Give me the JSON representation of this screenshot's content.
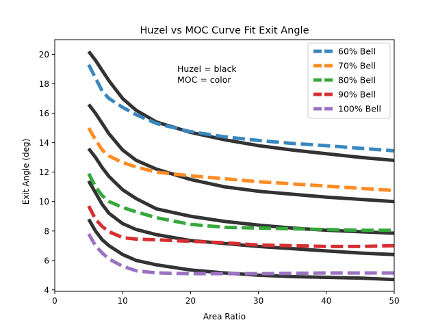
{
  "chart_data": {
    "type": "line",
    "title": "Huzel vs MOC Curve Fit Exit Angle",
    "xlabel": "Area Ratio",
    "ylabel": "Exit Angle (deg)",
    "xlim": [
      0,
      50
    ],
    "ylim": [
      3.9,
      21.0
    ],
    "xticks": [
      0,
      10,
      20,
      30,
      40,
      50
    ],
    "yticks": [
      4,
      6,
      8,
      10,
      12,
      14,
      16,
      18,
      20
    ],
    "grid": false,
    "legend_position": "top-right",
    "annotation": [
      "Huzel = black",
      "MOC = color"
    ],
    "huzel_color": "#333333",
    "series": [
      {
        "name": "60% Bell",
        "color": "#3a87bf",
        "moc": {
          "x": [
            5,
            6,
            7,
            8,
            10,
            12,
            15,
            20,
            25,
            30,
            35,
            40,
            45,
            50
          ],
          "y": [
            19.3,
            18.4,
            17.5,
            17.0,
            16.4,
            15.9,
            15.3,
            14.75,
            14.4,
            14.15,
            13.95,
            13.8,
            13.62,
            13.45
          ]
        },
        "huzel": {
          "x": [
            5,
            6,
            7,
            8,
            10,
            12,
            15,
            20,
            25,
            30,
            35,
            40,
            45,
            50
          ],
          "y": [
            20.2,
            19.6,
            18.9,
            18.2,
            17.0,
            16.2,
            15.4,
            14.7,
            14.2,
            13.8,
            13.5,
            13.25,
            13.0,
            12.8
          ]
        }
      },
      {
        "name": "70% Bell",
        "color": "#ff8c24",
        "moc": {
          "x": [
            5,
            6,
            7,
            8,
            10,
            12,
            15,
            20,
            25,
            30,
            35,
            40,
            45,
            50
          ],
          "y": [
            15.0,
            14.2,
            13.5,
            13.1,
            12.65,
            12.35,
            12.0,
            11.75,
            11.55,
            11.35,
            11.2,
            11.05,
            10.9,
            10.75
          ]
        },
        "huzel": {
          "x": [
            5,
            6,
            7,
            8,
            10,
            12,
            15,
            20,
            25,
            30,
            35,
            40,
            45,
            50
          ],
          "y": [
            16.6,
            16.0,
            15.3,
            14.6,
            13.5,
            12.8,
            12.2,
            11.5,
            11.0,
            10.7,
            10.5,
            10.3,
            10.15,
            10.0
          ]
        }
      },
      {
        "name": "80% Bell",
        "color": "#36a83c",
        "moc": {
          "x": [
            5,
            6,
            7,
            8,
            10,
            12,
            15,
            20,
            25,
            30,
            35,
            40,
            45,
            50
          ],
          "y": [
            11.9,
            11.0,
            10.4,
            10.0,
            9.6,
            9.3,
            8.9,
            8.45,
            8.25,
            8.2,
            8.15,
            8.1,
            8.05,
            8.05
          ]
        },
        "huzel": {
          "x": [
            5,
            6,
            7,
            8,
            10,
            12,
            15,
            20,
            25,
            30,
            35,
            40,
            45,
            50
          ],
          "y": [
            13.6,
            13.0,
            12.3,
            11.7,
            10.8,
            10.2,
            9.5,
            9.0,
            8.65,
            8.4,
            8.2,
            8.05,
            7.95,
            7.85
          ]
        }
      },
      {
        "name": "90% Bell",
        "color": "#d62f32",
        "moc": {
          "x": [
            5,
            6,
            7,
            8,
            10,
            12,
            15,
            20,
            25,
            30,
            35,
            40,
            45,
            50
          ],
          "y": [
            9.7,
            8.8,
            8.3,
            7.95,
            7.55,
            7.45,
            7.4,
            7.3,
            7.2,
            7.05,
            7.0,
            6.95,
            6.95,
            7.0
          ]
        },
        "huzel": {
          "x": [
            5,
            6,
            7,
            8,
            10,
            12,
            15,
            20,
            25,
            30,
            35,
            40,
            45,
            50
          ],
          "y": [
            11.4,
            10.6,
            9.8,
            9.2,
            8.5,
            8.1,
            7.75,
            7.35,
            7.15,
            6.95,
            6.8,
            6.65,
            6.5,
            6.4
          ]
        }
      },
      {
        "name": "100% Bell",
        "color": "#9b72c2",
        "moc": {
          "x": [
            5,
            6,
            7,
            8,
            10,
            12,
            15,
            20,
            25,
            30,
            35,
            40,
            45,
            50
          ],
          "y": [
            7.8,
            7.0,
            6.5,
            6.1,
            5.6,
            5.3,
            5.15,
            5.1,
            5.1,
            5.1,
            5.12,
            5.15,
            5.15,
            5.15
          ]
        },
        "huzel": {
          "x": [
            5,
            6,
            7,
            8,
            10,
            12,
            15,
            20,
            25,
            30,
            35,
            40,
            45,
            50
          ],
          "y": [
            8.8,
            8.0,
            7.4,
            7.0,
            6.4,
            6.0,
            5.7,
            5.35,
            5.15,
            5.0,
            4.9,
            4.85,
            4.8,
            4.7
          ]
        }
      }
    ]
  }
}
